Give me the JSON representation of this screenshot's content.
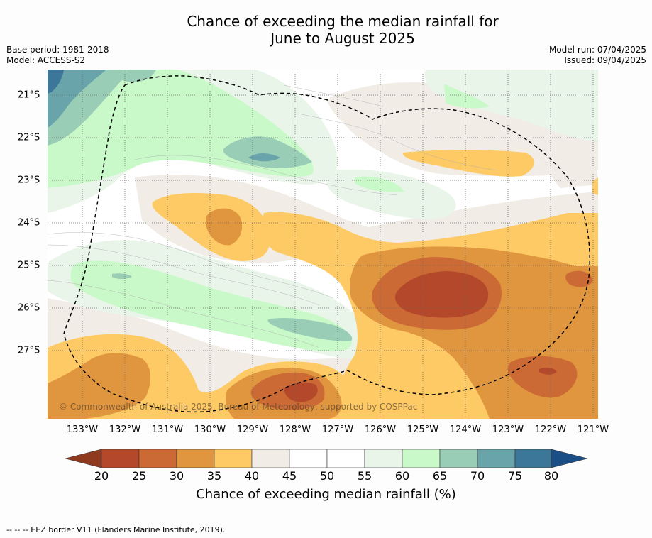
{
  "title_line1": "Chance of exceeding the median rainfall for",
  "title_line2": "June to August 2025",
  "base_period": "Base period: 1981-2018",
  "model": "Model: ACCESS-S2",
  "model_run": "Model run: 07/04/2025",
  "issued": "Issued: 09/04/2025",
  "x_ticks": [
    "133°W",
    "132°W",
    "131°W",
    "130°W",
    "129°W",
    "128°W",
    "127°W",
    "126°W",
    "125°W",
    "124°W",
    "123°W",
    "122°W",
    "121°W"
  ],
  "y_ticks": [
    "21°S",
    "22°S",
    "23°S",
    "24°S",
    "25°S",
    "26°S",
    "27°S"
  ],
  "copyright": "© Commonwealth of Australia 2025, Bureau of Meteorology, supported by COSPPac",
  "colorbar": {
    "ticks": [
      "20",
      "25",
      "30",
      "35",
      "40",
      "45",
      "50",
      "55",
      "60",
      "65",
      "70",
      "75",
      "80"
    ],
    "label": "Chance of exceeding median rainfall (%)",
    "colors": [
      "#8f3a1f",
      "#b3492a",
      "#cc6a35",
      "#e0953f",
      "#fdca66",
      "#f1ede6",
      "#ffffff",
      "#ffffff",
      "#eaf5ea",
      "#c9f9c9",
      "#99cdb6",
      "#68a4a9",
      "#3c7698",
      "#1c4e86"
    ]
  },
  "footnote": "-- -- -- EEZ border V11 (Flanders Marine Institute, 2019)."
}
